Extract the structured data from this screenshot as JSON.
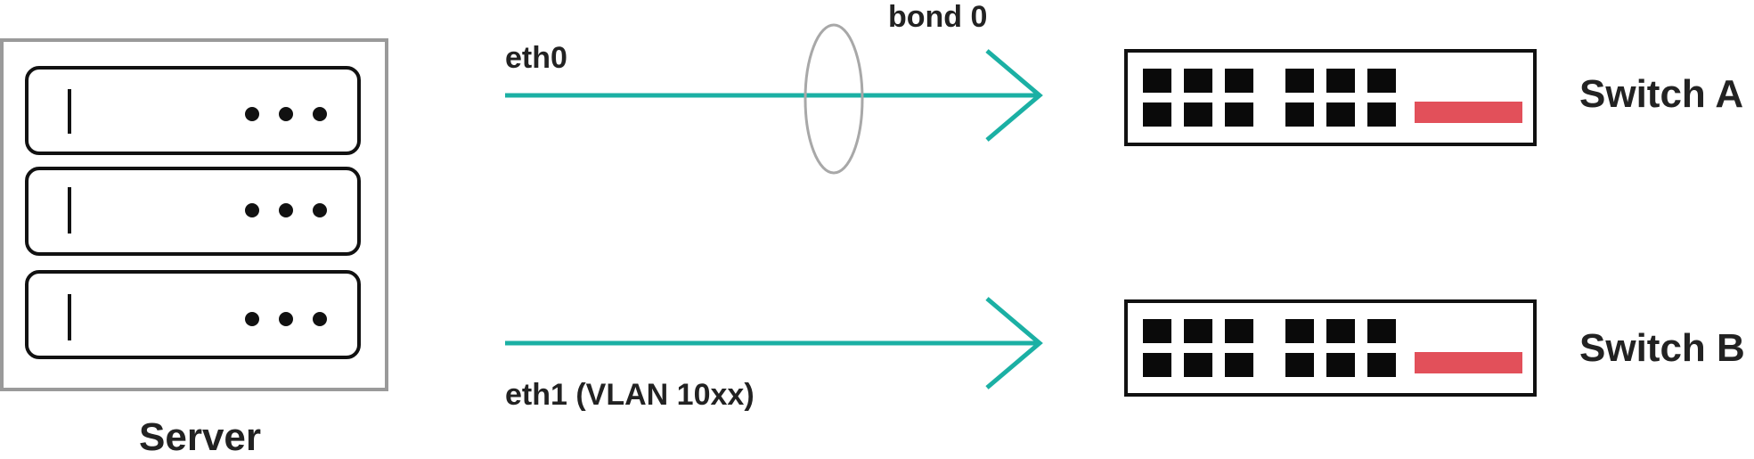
{
  "server": {
    "label": "Server",
    "units": [
      {
        "id": "unit-1"
      },
      {
        "id": "unit-2"
      },
      {
        "id": "unit-3"
      }
    ]
  },
  "bond": {
    "label": "bond 0"
  },
  "links": [
    {
      "id": "eth0",
      "label": "eth0",
      "target": "switch-a"
    },
    {
      "id": "eth1",
      "label": "eth1 (VLAN 10xx)",
      "target": "switch-b"
    }
  ],
  "switches": [
    {
      "id": "switch-a",
      "label": "Switch A",
      "ports_top": 6,
      "ports_bottom": 6
    },
    {
      "id": "switch-b",
      "label": "Switch B",
      "ports_top": 6,
      "ports_bottom": 6
    }
  ],
  "colors": {
    "link": "#1bb0a4",
    "uplink_bar": "#e2505a",
    "server_frame": "#9a9a9a",
    "bond_ring": "#a8a8a8",
    "port": "#0a0a0a",
    "text": "#222222"
  }
}
